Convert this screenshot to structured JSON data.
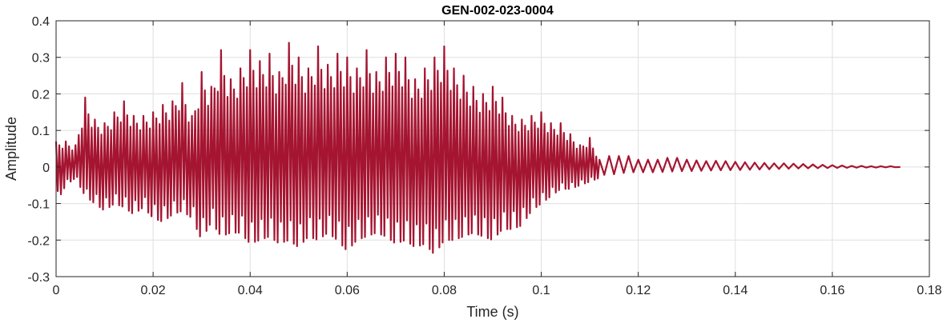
{
  "chart_data": {
    "type": "line",
    "title": "GEN-002-023-0004",
    "xlabel": "Time (s)",
    "ylabel": "Amplitude",
    "xlim": [
      0,
      0.18
    ],
    "ylim": [
      -0.3,
      0.4
    ],
    "xticks": [
      0,
      0.02,
      0.04,
      0.06,
      0.08,
      0.1,
      0.12,
      0.14,
      0.16,
      0.18
    ],
    "xtick_labels": [
      "0",
      "0.02",
      "0.04",
      "0.06",
      "0.08",
      "0.1",
      "0.12",
      "0.14",
      "0.16",
      "0.18"
    ],
    "yticks": [
      -0.3,
      -0.2,
      -0.1,
      0,
      0.1,
      0.2,
      0.3,
      0.4
    ],
    "ytick_labels": [
      "-0.3",
      "-0.2",
      "-0.1",
      "0",
      "0.1",
      "0.2",
      "0.3",
      "0.4"
    ],
    "grid": true,
    "line_color": "#a51531",
    "series": [
      {
        "name": "",
        "x": [
          0,
          0.002,
          0.004,
          0.006,
          0.008,
          0.01,
          0.012,
          0.014,
          0.016,
          0.018,
          0.02,
          0.022,
          0.024,
          0.026,
          0.028,
          0.03,
          0.032,
          0.034,
          0.036,
          0.038,
          0.04,
          0.042,
          0.044,
          0.046,
          0.048,
          0.05,
          0.052,
          0.054,
          0.056,
          0.058,
          0.06,
          0.062,
          0.064,
          0.066,
          0.068,
          0.07,
          0.072,
          0.074,
          0.076,
          0.078,
          0.08,
          0.082,
          0.084,
          0.086,
          0.088,
          0.09,
          0.092,
          0.094,
          0.096,
          0.098,
          0.1,
          0.102,
          0.104,
          0.106,
          0.108,
          0.11,
          0.112,
          0.114,
          0.116,
          0.118,
          0.12,
          0.122,
          0.124,
          0.126,
          0.128,
          0.13,
          0.132,
          0.134,
          0.136,
          0.138,
          0.14,
          0.142,
          0.144,
          0.146,
          0.148,
          0.15,
          0.152,
          0.154,
          0.156,
          0.158,
          0.16,
          0.162,
          0.164,
          0.166,
          0.168,
          0.17,
          0.172,
          0.174
        ],
        "upper": [
          0.07,
          0.07,
          0.06,
          0.19,
          0.13,
          0.12,
          0.15,
          0.18,
          0.14,
          0.14,
          0.15,
          0.17,
          0.18,
          0.23,
          0.14,
          0.26,
          0.22,
          0.32,
          0.24,
          0.27,
          0.32,
          0.29,
          0.31,
          0.26,
          0.34,
          0.3,
          0.27,
          0.33,
          0.28,
          0.31,
          0.3,
          0.27,
          0.32,
          0.26,
          0.3,
          0.31,
          0.3,
          0.24,
          0.27,
          0.3,
          0.33,
          0.27,
          0.25,
          0.22,
          0.2,
          0.22,
          0.19,
          0.14,
          0.13,
          0.14,
          0.15,
          0.12,
          0.12,
          0.09,
          0.06,
          0.08,
          0.02,
          0.03,
          0.03,
          0.03,
          0.02,
          0.02,
          0.02,
          0.025,
          0.025,
          0.02,
          0.018,
          0.016,
          0.017,
          0.016,
          0.014,
          0.013,
          0.012,
          0.011,
          0.01,
          0.01,
          0.009,
          0.008,
          0.007,
          0.006,
          0.005,
          0.004,
          0.003,
          0.003,
          0.002,
          0.002,
          0.002,
          0.001
        ],
        "lower": [
          -0.1,
          -0.05,
          -0.03,
          -0.08,
          -0.1,
          -0.12,
          -0.1,
          -0.11,
          -0.13,
          -0.11,
          -0.14,
          -0.15,
          -0.13,
          -0.12,
          -0.14,
          -0.2,
          -0.15,
          -0.19,
          -0.18,
          -0.18,
          -0.21,
          -0.2,
          -0.19,
          -0.21,
          -0.2,
          -0.22,
          -0.19,
          -0.2,
          -0.18,
          -0.2,
          -0.23,
          -0.2,
          -0.19,
          -0.18,
          -0.19,
          -0.21,
          -0.2,
          -0.22,
          -0.21,
          -0.24,
          -0.2,
          -0.2,
          -0.19,
          -0.18,
          -0.19,
          -0.2,
          -0.17,
          -0.17,
          -0.16,
          -0.12,
          -0.1,
          -0.08,
          -0.06,
          -0.06,
          -0.05,
          -0.04,
          -0.03,
          -0.03,
          -0.025,
          -0.02,
          -0.02,
          -0.02,
          -0.02,
          -0.018,
          -0.016,
          -0.016,
          -0.015,
          -0.014,
          -0.013,
          -0.012,
          -0.012,
          -0.011,
          -0.01,
          -0.009,
          -0.008,
          -0.007,
          -0.006,
          -0.005,
          -0.005,
          -0.004,
          -0.004,
          -0.003,
          -0.003,
          -0.002,
          -0.002,
          -0.002,
          -0.001,
          -0.001
        ],
        "cycles_per_step": [
          3,
          3,
          3,
          3,
          3,
          3,
          3,
          3,
          3,
          3,
          3,
          3,
          3,
          3,
          3,
          3,
          3,
          3,
          3,
          3,
          3,
          3,
          3,
          3,
          3,
          3,
          3,
          3,
          3,
          3,
          3,
          3,
          3,
          3,
          3,
          3,
          3,
          3,
          3,
          3,
          3,
          3,
          3,
          3,
          3,
          3,
          3,
          3,
          3,
          3,
          3,
          3,
          3,
          3,
          3,
          3,
          1,
          1,
          1,
          1,
          1,
          1,
          1,
          1,
          1,
          1,
          1,
          1,
          1,
          1,
          1,
          1,
          1,
          1,
          1,
          1,
          1,
          1,
          1,
          1,
          1,
          1,
          1,
          1,
          1,
          1,
          1,
          1
        ]
      }
    ]
  }
}
